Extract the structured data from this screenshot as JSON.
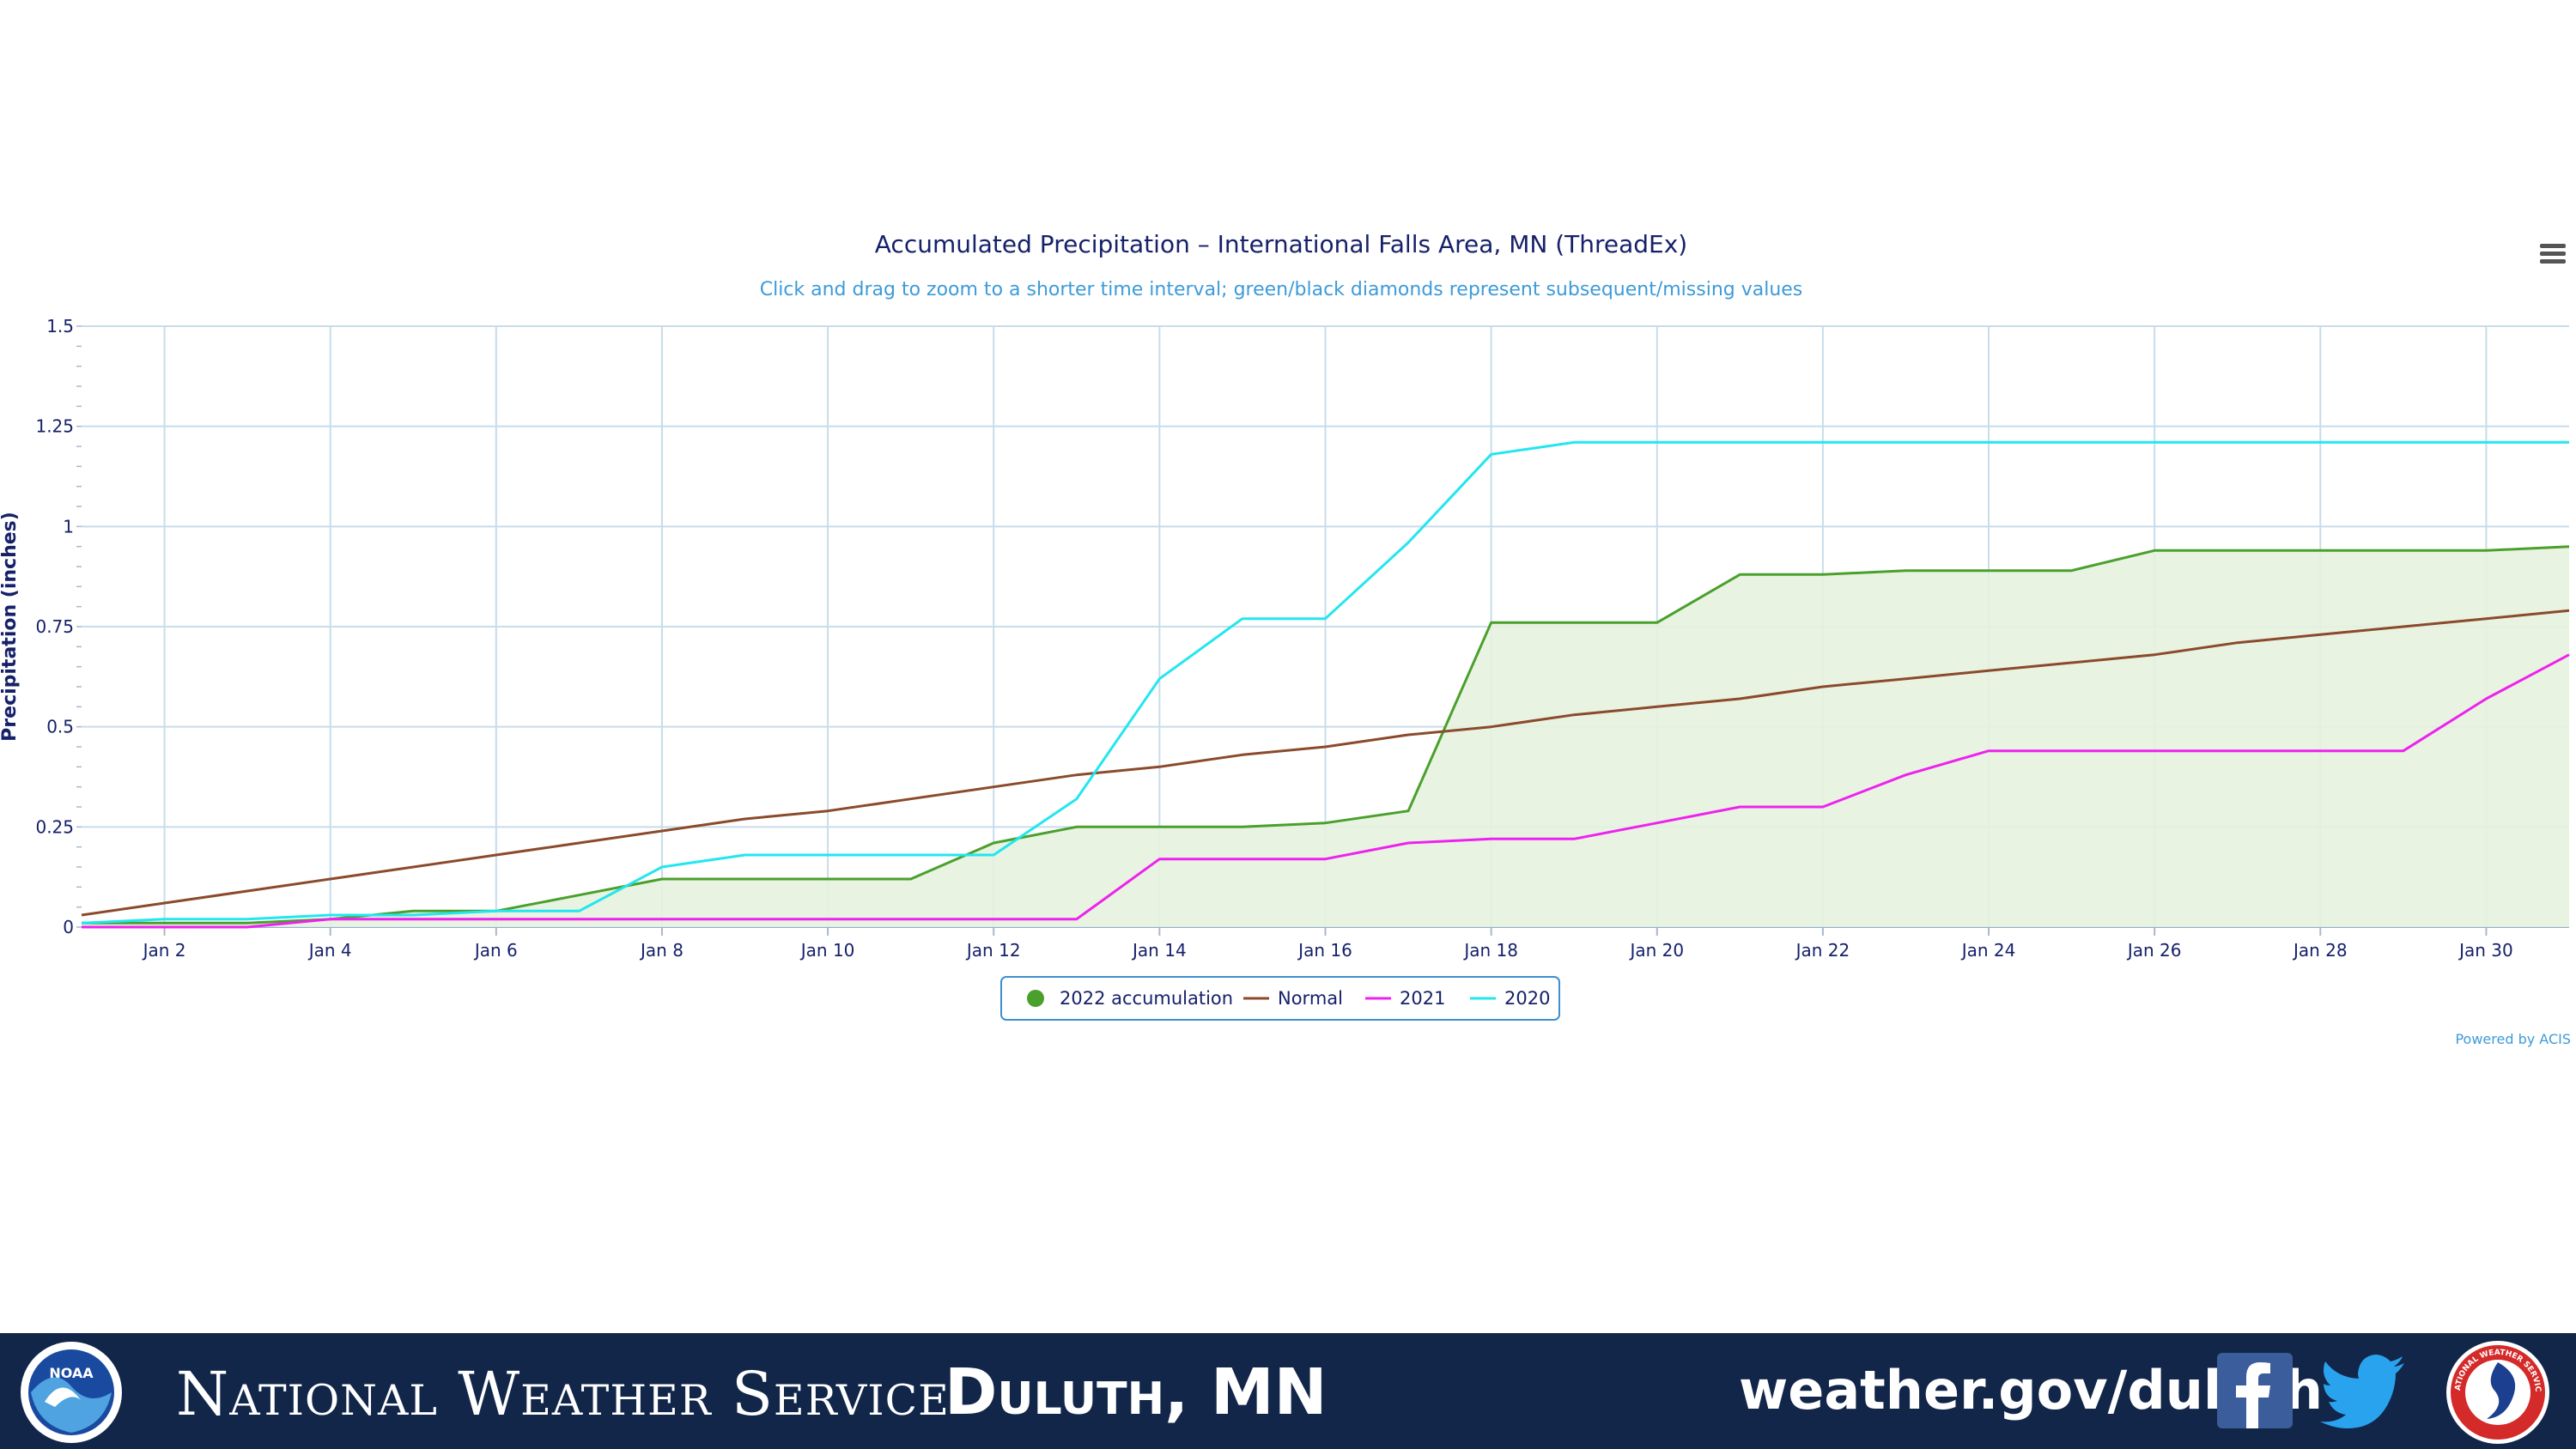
{
  "chart_data": {
    "type": "line",
    "title": "Accumulated Precipitation – International Falls Area, MN (ThreadEx)",
    "subtitle": "Click and drag to zoom to a shorter time interval; green/black diamonds represent subsequent/missing values",
    "ylabel": "Precipitation (inches)",
    "xlabel": "",
    "x": [
      "Jan 1",
      "Jan 2",
      "Jan 3",
      "Jan 4",
      "Jan 5",
      "Jan 6",
      "Jan 7",
      "Jan 8",
      "Jan 9",
      "Jan 10",
      "Jan 11",
      "Jan 12",
      "Jan 13",
      "Jan 14",
      "Jan 15",
      "Jan 16",
      "Jan 17",
      "Jan 18",
      "Jan 19",
      "Jan 20",
      "Jan 21",
      "Jan 22",
      "Jan 23",
      "Jan 24",
      "Jan 25",
      "Jan 26",
      "Jan 27",
      "Jan 28",
      "Jan 29",
      "Jan 30",
      "Jan 31"
    ],
    "x_tick_labels": [
      "Jan 2",
      "Jan 4",
      "Jan 6",
      "Jan 8",
      "Jan 10",
      "Jan 12",
      "Jan 14",
      "Jan 16",
      "Jan 18",
      "Jan 20",
      "Jan 22",
      "Jan 24",
      "Jan 26",
      "Jan 28",
      "Jan 30"
    ],
    "y_tick_labels": [
      "0",
      "0.25",
      "0.5",
      "0.75",
      "1",
      "1.25",
      "1.5"
    ],
    "ylim": [
      0,
      1.5
    ],
    "grid": true,
    "legend_position": "bottom-center",
    "series": [
      {
        "name": "2022 accumulation",
        "color": "#4aa02c",
        "fill": "#e6f2df",
        "marker": "circle",
        "values": [
          0.01,
          0.01,
          0.01,
          0.02,
          0.04,
          0.04,
          0.08,
          0.12,
          0.12,
          0.12,
          0.12,
          0.21,
          0.25,
          0.25,
          0.25,
          0.26,
          0.29,
          0.76,
          0.76,
          0.76,
          0.88,
          0.88,
          0.89,
          0.89,
          0.89,
          0.94,
          0.94,
          0.94,
          0.94,
          0.94,
          0.95
        ]
      },
      {
        "name": "Normal",
        "color": "#8b4a2b",
        "marker": "line",
        "values": [
          0.03,
          0.06,
          0.09,
          0.12,
          0.15,
          0.18,
          0.21,
          0.24,
          0.27,
          0.29,
          0.32,
          0.35,
          0.38,
          0.4,
          0.43,
          0.45,
          0.48,
          0.5,
          0.53,
          0.55,
          0.57,
          0.6,
          0.62,
          0.64,
          0.66,
          0.68,
          0.71,
          0.73,
          0.75,
          0.77,
          0.79
        ]
      },
      {
        "name": "2021",
        "color": "#ee22ee",
        "marker": "line",
        "values": [
          0.0,
          0.0,
          0.0,
          0.02,
          0.02,
          0.02,
          0.02,
          0.02,
          0.02,
          0.02,
          0.02,
          0.02,
          0.02,
          0.17,
          0.17,
          0.17,
          0.21,
          0.22,
          0.22,
          0.26,
          0.3,
          0.3,
          0.38,
          0.44,
          0.44,
          0.44,
          0.44,
          0.44,
          0.44,
          0.57,
          0.68
        ]
      },
      {
        "name": "2020",
        "color": "#22e6f0",
        "marker": "line",
        "values": [
          0.01,
          0.02,
          0.02,
          0.03,
          0.03,
          0.04,
          0.04,
          0.15,
          0.18,
          0.18,
          0.18,
          0.18,
          0.32,
          0.62,
          0.77,
          0.77,
          0.96,
          1.18,
          1.21,
          1.21,
          1.21,
          1.21,
          1.21,
          1.21,
          1.21,
          1.21,
          1.21,
          1.21,
          1.21,
          1.21,
          1.21
        ]
      }
    ]
  },
  "credit": "Powered by ACIS",
  "menu_icon": "hamburger-menu-icon",
  "footer": {
    "org": "National Weather Service",
    "office": "Duluth, MN",
    "url": "weather.gov/duluth",
    "noaa_logo_text": "NOAA",
    "nws_logo_text": "NATIONAL WEATHER SERVICE",
    "background": "#12264a",
    "icons": [
      "noaa-logo-icon",
      "facebook-icon",
      "twitter-icon",
      "nws-logo-icon"
    ]
  }
}
